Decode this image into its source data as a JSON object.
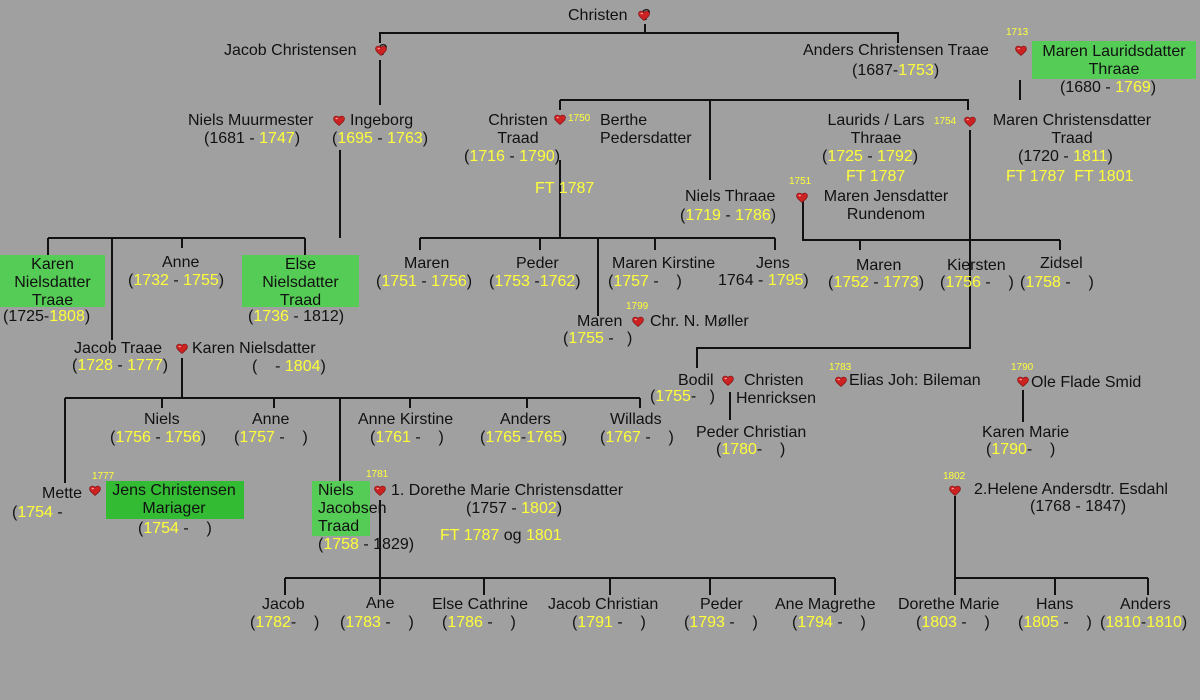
{
  "symbols": {
    "marriage": "heart-icon",
    "heart_color": "#cc2222",
    "year_color": "#ffff3a",
    "highlight_color": "#55cc55"
  },
  "people": {
    "christen_root": "Christen",
    "christen_root_spouse": "?",
    "jacob_christensen": "Jacob Christensen",
    "jacob_christensen_spouse": "?",
    "anders_traae": "Anders Christensen Traae",
    "anders_traae_years": [
      "1687",
      "1753"
    ],
    "maren_lauridsdatter": [
      "Maren Lauridsdatter",
      "Thraae"
    ],
    "maren_lauridsdatter_years": [
      "1680",
      "1769"
    ],
    "marriage_1713": "1713",
    "niels_muurmester": "Niels Muurmester",
    "niels_muurmester_years": [
      "1681",
      "1747"
    ],
    "ingeborg": "Ingeborg",
    "ingeborg_years": [
      "1695",
      "1763"
    ],
    "christen_traad": [
      "Christen",
      "Traad"
    ],
    "christen_traad_years": [
      "1716",
      "1790"
    ],
    "marriage_1750": "1750",
    "berthe": [
      "Berthe",
      "Pedersdatter"
    ],
    "ft_1787_a": "FT 1787",
    "lars_thraae": [
      "Laurids / Lars",
      "Thraae"
    ],
    "lars_thraae_years": [
      "1725",
      "1792"
    ],
    "ft_1787_b": "FT 1787",
    "marriage_1754": "1754",
    "maren_christensdatter": [
      "Maren Christensdatter",
      "Traad"
    ],
    "maren_christensdatter_years": [
      "1720",
      "1811"
    ],
    "ft_1787_1801": [
      "FT 1787",
      "FT 1801"
    ],
    "niels_thraae": "Niels Thraae",
    "niels_thraae_years": [
      "1719",
      "1786"
    ],
    "marriage_1751": "1751",
    "maren_jensdatter": [
      "Maren Jensdatter",
      "Rundenom"
    ],
    "karen_nielsdatter_traae": [
      "Karen",
      "Nielsdatter",
      "Traae"
    ],
    "karen_nielsdatter_traae_years": [
      "1725",
      "1808"
    ],
    "anne_1732": "Anne",
    "anne_1732_years": [
      "1732",
      "1755"
    ],
    "else_nielsdatter": [
      "Else",
      "Nielsdatter",
      "Traad"
    ],
    "else_nielsdatter_years": [
      "1736",
      "1812"
    ],
    "maren_1751": "Maren",
    "maren_1751_years": [
      "1751",
      "1756"
    ],
    "peder_1753": "Peder",
    "peder_1753_years": [
      "1753",
      "1762"
    ],
    "maren_kirstine": "Maren Kirstine",
    "maren_kirstine_years": [
      "1757",
      ""
    ],
    "jens_1764": "Jens",
    "jens_1764_years": [
      "1764",
      "1795"
    ],
    "maren_1752": "Maren",
    "maren_1752_years": [
      "1752",
      "1773"
    ],
    "kiersten": "Kiersten",
    "kiersten_years": [
      "1756",
      ""
    ],
    "zidsel": "Zidsel",
    "zidsel_years": [
      "1758",
      ""
    ],
    "maren_1755": "Maren",
    "maren_1755_years": [
      "1755",
      ""
    ],
    "marriage_1799": "1799",
    "chr_moller": "Chr. N. Møller",
    "jacob_traae": "Jacob Traae",
    "jacob_traae_years": [
      "1728",
      "1777"
    ],
    "karen_nielsdatter": "Karen Nielsdatter",
    "karen_nielsdatter_years": [
      "",
      "1804"
    ],
    "bodil": "Bodil",
    "bodil_years": [
      "1755",
      ""
    ],
    "christen_henricksen": [
      "Christen",
      "Henricksen"
    ],
    "marriage_1783": "1783",
    "elias_bileman": "Elias Joh: Bileman",
    "marriage_1790": "1790",
    "ole_flade": "Ole Flade Smid",
    "niels_1756": "Niels",
    "niels_1756_years": [
      "1756",
      "1756"
    ],
    "anne_1757": "Anne",
    "anne_1757_years": [
      "1757",
      ""
    ],
    "anne_kirstine": "Anne Kirstine",
    "anne_kirstine_years": [
      "1761",
      ""
    ],
    "anders_1765": "Anders",
    "anders_1765_years": [
      "1765",
      "1765"
    ],
    "willads": "Willads",
    "willads_years": [
      "1767",
      ""
    ],
    "peder_christian": "Peder Christian",
    "peder_christian_years": [
      "1780",
      ""
    ],
    "karen_marie": "Karen Marie",
    "karen_marie_years": [
      "1790",
      ""
    ],
    "mette": "Mette",
    "mette_years": [
      "1754",
      ""
    ],
    "marriage_1777": "1777",
    "jens_mariager": [
      "Jens Christensen",
      "Mariager"
    ],
    "jens_mariager_years": [
      "1754",
      ""
    ],
    "niels_jacobsen": [
      "Niels",
      "Jacobsen",
      "Traad"
    ],
    "niels_jacobsen_years": [
      "1758",
      "1829"
    ],
    "marriage_1781": "1781",
    "dorethe_marie": "1. Dorethe Marie Christensdatter",
    "dorethe_marie_years": [
      "1757",
      "1802"
    ],
    "ft_og": [
      "FT 1787",
      "og",
      "1801"
    ],
    "marriage_1802": "1802",
    "helene": "2.Helene Andersdtr. Esdahl",
    "helene_years": [
      "1768",
      "1847"
    ],
    "jacob_1782": "Jacob",
    "jacob_1782_years": [
      "1782",
      ""
    ],
    "ane_1783": "Ane",
    "ane_1783_years": [
      "1783",
      ""
    ],
    "else_cathrine": "Else Cathrine",
    "else_cathrine_years": [
      "1786",
      ""
    ],
    "jacob_christian": "Jacob Christian",
    "jacob_christian_years": [
      "1791",
      ""
    ],
    "peder_1793": "Peder",
    "peder_1793_years": [
      "1793",
      ""
    ],
    "ane_magrethe": "Ane Magrethe",
    "ane_magrethe_years": [
      "1794",
      ""
    ],
    "dorethe_1803": "Dorethe Marie",
    "dorethe_1803_years": [
      "1803",
      ""
    ],
    "hans_1805": "Hans",
    "hans_1805_years": [
      "1805",
      ""
    ],
    "anders_1810": "Anders",
    "anders_1810_years": [
      "1810",
      "1810"
    ]
  }
}
